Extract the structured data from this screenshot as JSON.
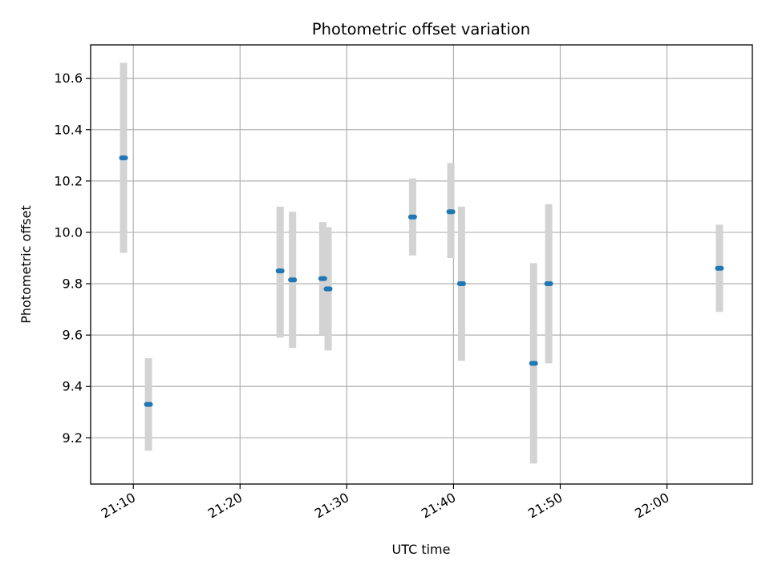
{
  "chart_data": {
    "type": "scatter",
    "title": "Photometric offset variation",
    "xlabel": "UTC time",
    "ylabel": "Photometric offset",
    "xlim": [
      "21:06",
      "22:08"
    ],
    "ylim": [
      9.02,
      10.73
    ],
    "x_ticks": [
      "21:10",
      "21:20",
      "21:30",
      "21:40",
      "21:50",
      "22:00"
    ],
    "y_ticks": [
      "9.2",
      "9.4",
      "9.6",
      "9.8",
      "10.0",
      "10.2",
      "10.4",
      "10.6"
    ],
    "grid": true,
    "colors": {
      "point": "#1f77b4",
      "errorbar": "#d3d3d3",
      "grid": "#b0b0b0"
    },
    "points": [
      {
        "x": "21:09:05",
        "y": 10.29,
        "low": 9.92,
        "high": 10.66
      },
      {
        "x": "21:11:25",
        "y": 9.33,
        "low": 9.15,
        "high": 9.51
      },
      {
        "x": "21:23:45",
        "y": 9.85,
        "low": 9.59,
        "high": 10.1
      },
      {
        "x": "21:24:55",
        "y": 9.815,
        "low": 9.55,
        "high": 10.08
      },
      {
        "x": "21:27:45",
        "y": 9.82,
        "low": 9.6,
        "high": 10.04
      },
      {
        "x": "21:28:15",
        "y": 9.78,
        "low": 9.54,
        "high": 10.02
      },
      {
        "x": "21:36:10",
        "y": 10.06,
        "low": 9.91,
        "high": 10.21
      },
      {
        "x": "21:39:45",
        "y": 10.08,
        "low": 9.9,
        "high": 10.27
      },
      {
        "x": "21:40:45",
        "y": 9.8,
        "low": 9.5,
        "high": 10.1
      },
      {
        "x": "21:47:30",
        "y": 9.49,
        "low": 9.1,
        "high": 9.88
      },
      {
        "x": "21:48:55",
        "y": 9.8,
        "low": 9.49,
        "high": 10.11
      },
      {
        "x": "22:04:55",
        "y": 9.86,
        "low": 9.69,
        "high": 10.03
      }
    ]
  }
}
